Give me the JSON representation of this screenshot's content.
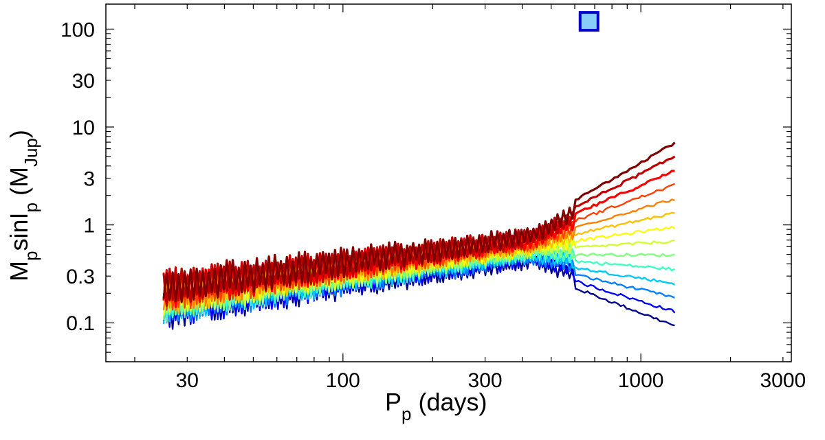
{
  "chart_data": {
    "type": "line",
    "xscale": "log",
    "yscale": "log",
    "xlim": [
      16,
      3200
    ],
    "ylim": [
      0.04,
      180
    ],
    "x_ticks": [
      30,
      100,
      300,
      1000,
      3000
    ],
    "x_tick_labels": [
      "30",
      "100",
      "300",
      "1000",
      "3000"
    ],
    "y_ticks": [
      0.1,
      0.3,
      1,
      3,
      10,
      30,
      100
    ],
    "y_tick_labels": [
      "0.1",
      "0.3",
      "1",
      "3",
      "10",
      "30",
      "100"
    ],
    "xlabel": {
      "main": "P",
      "sub": "p",
      "rest": " (days)"
    },
    "ylabel": {
      "m": "M",
      "m_sub": "p",
      "sin": "sinI",
      "sin_sub": "p",
      "open": " (M",
      "unit_sub": "Jup",
      "close": ")"
    },
    "series_colors": [
      "#00008f",
      "#0000ff",
      "#0080ff",
      "#00c8ff",
      "#40ffbf",
      "#80ff80",
      "#d0ff30",
      "#ffff00",
      "#ffc000",
      "#ff8000",
      "#ff4000",
      "#ff0000",
      "#c00000",
      "#800000"
    ],
    "trend": {
      "x_start": 25,
      "y_start": 0.18,
      "x_end": 1300,
      "y_end": 0.95
    },
    "marker": {
      "label": "square-marker",
      "x": 670,
      "y": 120,
      "fill": "#87cefa",
      "stroke": "#0000cd"
    }
  }
}
